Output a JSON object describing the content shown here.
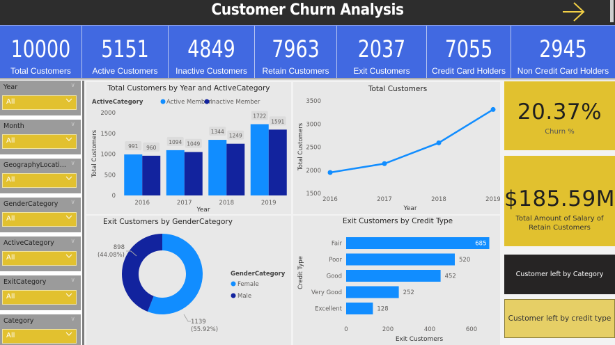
{
  "header": {
    "title": "Customer Churn Analysis",
    "nav_icon": "arrow-right-icon",
    "accent_color": "#f2d046"
  },
  "kpis": [
    {
      "value": "10000",
      "label": "Total Customers"
    },
    {
      "value": "5151",
      "label": "Active Customers"
    },
    {
      "value": "4849",
      "label": "Inactive Customers"
    },
    {
      "value": "7963",
      "label": "Retain Customers"
    },
    {
      "value": "2037",
      "label": "Exit Customers"
    },
    {
      "value": "7055",
      "label": "Credit Card Holders"
    },
    {
      "value": "2945",
      "label": "Non Credit Card Holders"
    }
  ],
  "slicers": [
    {
      "title": "Year",
      "value": "All"
    },
    {
      "title": "Month",
      "value": "All"
    },
    {
      "title": "GeographyLocati...",
      "value": "All"
    },
    {
      "title": "GenderCategory",
      "value": "All"
    },
    {
      "title": "ActiveCategory",
      "value": "All"
    },
    {
      "title": "ExitCategory",
      "value": "All"
    },
    {
      "title": "Category",
      "value": "All"
    }
  ],
  "cards": {
    "churn": {
      "value": "20.37%",
      "label": "Churn %"
    },
    "salary": {
      "value": "$185.59M",
      "label_line1": "Total Amount of Salary of",
      "label_line2": "Retain Customers"
    }
  },
  "buttons": {
    "by_category": "Customer left by Category",
    "by_credit_type": "Customer left by credit type"
  },
  "colors": {
    "kpi_bg": "#4169e1",
    "active": "#118dff",
    "inactive": "#12239e",
    "card_yellow": "#e1c12f"
  },
  "chart_data": [
    {
      "id": "bar_year_active",
      "type": "bar",
      "title": "Total Customers by Year and ActiveCategory",
      "legend_title": "ActiveCategory",
      "legend_position": "top",
      "categories": [
        "2016",
        "2017",
        "2018",
        "2019"
      ],
      "series": [
        {
          "name": "Active Member",
          "color": "#118dff",
          "values": [
            991,
            1094,
            1344,
            1722
          ]
        },
        {
          "name": "Inactive Member",
          "color": "#12239e",
          "values": [
            960,
            1049,
            1249,
            1591
          ]
        }
      ],
      "xlabel": "Year",
      "ylabel": "Total Customers",
      "ylim": [
        0,
        2000
      ],
      "yticks": [
        0,
        500,
        1000,
        1500,
        2000
      ]
    },
    {
      "id": "line_total",
      "type": "line",
      "title": "Total Customers",
      "x": [
        "2016",
        "2017",
        "2018",
        "2019"
      ],
      "series": [
        {
          "name": "Total Customers",
          "color": "#118dff",
          "values": [
            1951,
            2143,
            2593,
            3313
          ]
        }
      ],
      "xlabel": "Year",
      "ylabel": "Total Customers",
      "ylim": [
        1500,
        3500
      ],
      "yticks": [
        1500,
        2000,
        2500,
        3000,
        3500
      ]
    },
    {
      "id": "donut_gender",
      "type": "pie",
      "title": "Exit Customers by GenderCategory",
      "legend_title": "GenderCategory",
      "legend_position": "right",
      "slices": [
        {
          "name": "Female",
          "value": 1139,
          "pct": "55.92%",
          "color": "#118dff"
        },
        {
          "name": "Male",
          "value": 898,
          "pct": "44.08%",
          "color": "#12239e"
        }
      ]
    },
    {
      "id": "hbar_credit",
      "type": "bar",
      "orientation": "horizontal",
      "title": "Exit Customers by Credit Type",
      "categories": [
        "Fair",
        "Poor",
        "Good",
        "Very Good",
        "Excellent"
      ],
      "values": [
        685,
        520,
        452,
        252,
        128
      ],
      "color": "#118dff",
      "xlabel": "Exit Customers",
      "ylabel": "Credit Type",
      "xlim": [
        0,
        700
      ],
      "xticks": [
        0,
        200,
        400,
        600
      ]
    }
  ]
}
